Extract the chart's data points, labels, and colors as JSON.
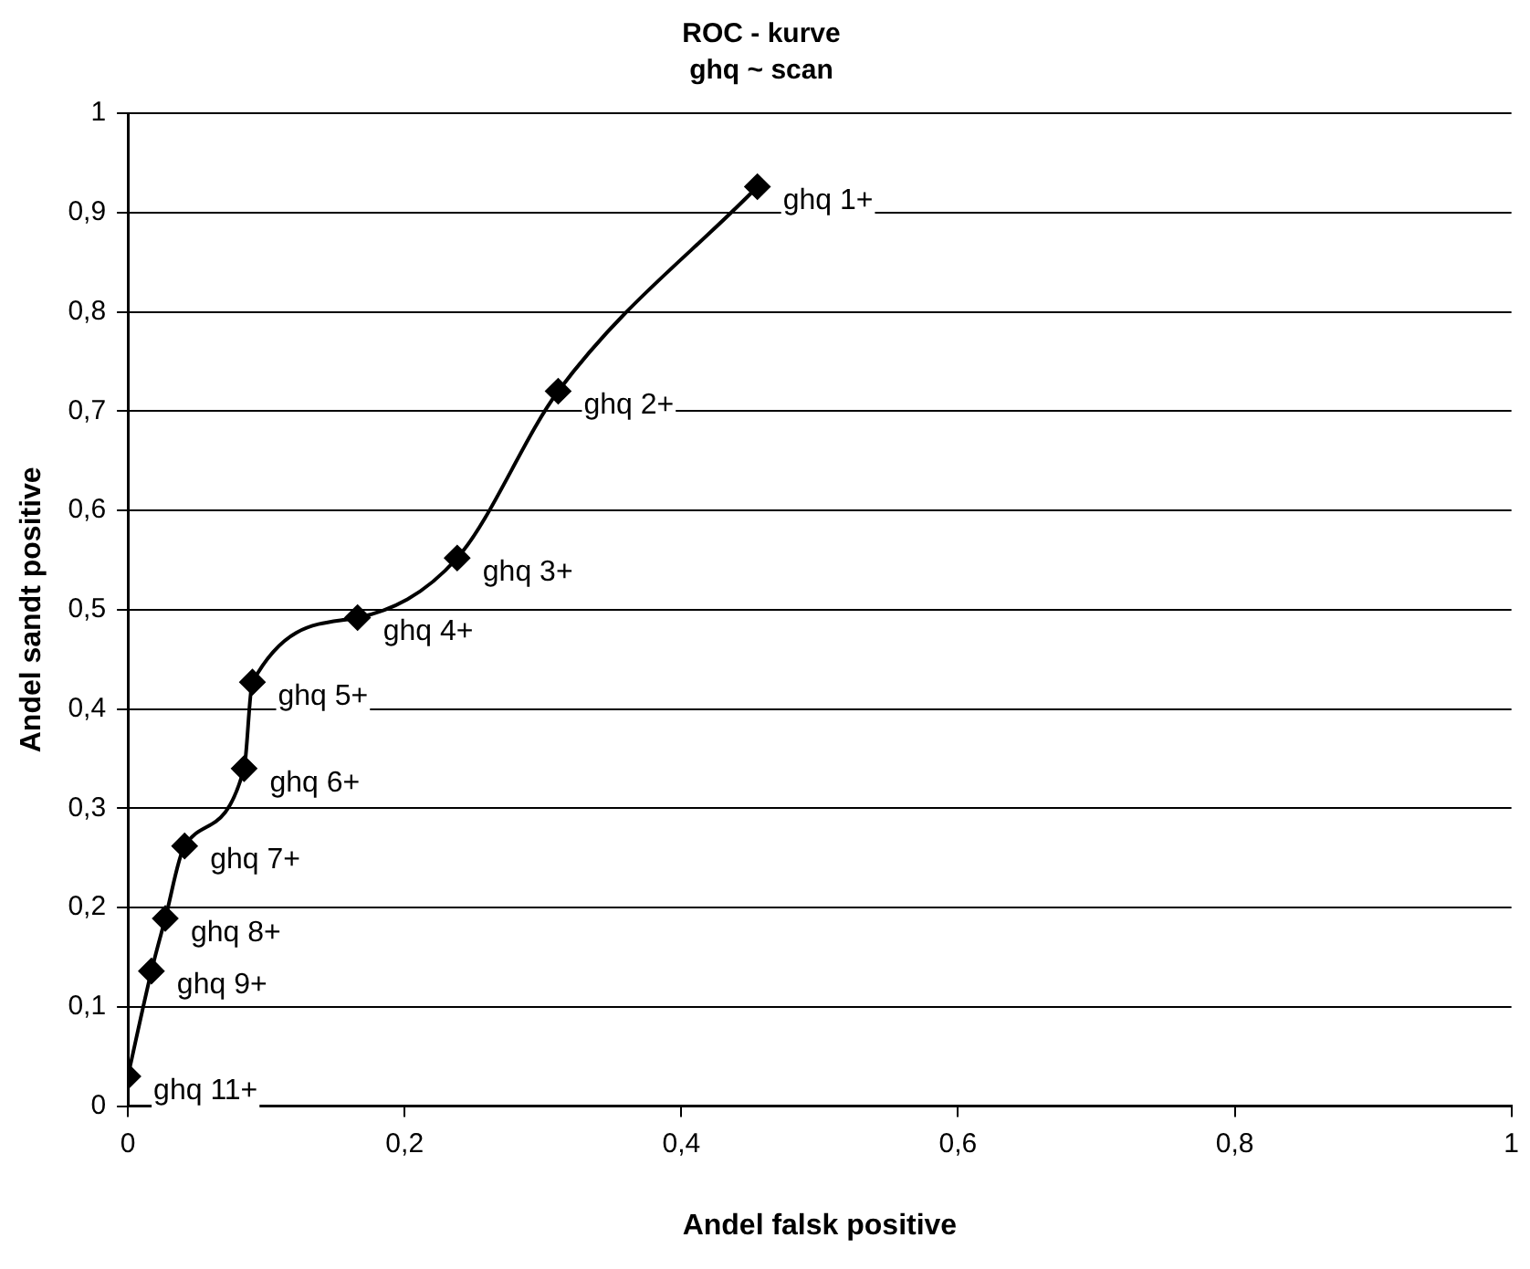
{
  "chart_data": {
    "type": "line",
    "title": "ROC - kurve",
    "subtitle": "ghq ~ scan",
    "xlabel": "Andel falsk positive",
    "ylabel": "Andel sandt positive",
    "x": [
      0,
      0.017,
      0.027,
      0.041,
      0.084,
      0.09,
      0.166,
      0.238,
      0.311,
      0.455
    ],
    "values": [
      0.03,
      0.136,
      0.189,
      0.262,
      0.34,
      0.427,
      0.492,
      0.552,
      0.72,
      0.926
    ],
    "color": "#000000",
    "marker": "diamond",
    "grid": "y",
    "legend": false,
    "xlim": [
      0,
      1
    ],
    "xticks": [
      0,
      {
        "value": 0.2,
        "label": "0,2"
      },
      {
        "value": 0.4,
        "label": "0,4"
      },
      {
        "value": 0.6,
        "label": "0,6"
      },
      {
        "value": 0.8,
        "label": "0,8"
      },
      1
    ],
    "ylim": [
      0,
      1
    ],
    "yticks": [
      0,
      {
        "value": 0.1,
        "label": "0,1"
      },
      {
        "value": 0.2,
        "label": "0,2"
      },
      {
        "value": 0.3,
        "label": "0,3"
      },
      {
        "value": 0.4,
        "label": "0,4"
      },
      {
        "value": 0.5,
        "label": "0,5"
      },
      {
        "value": 0.6,
        "label": "0,6"
      },
      {
        "value": 0.7,
        "label": "0,7"
      },
      {
        "value": 0.8,
        "label": "0,8"
      },
      {
        "value": 0.9,
        "label": "0,9"
      },
      1
    ],
    "annotations": [
      {
        "text": "ghq 11+",
        "x": 0,
        "y": 0.03
      },
      {
        "text": "ghq 9+",
        "x": 0.017,
        "y": 0.136
      },
      {
        "text": "ghq 8+",
        "x": 0.027,
        "y": 0.189
      },
      {
        "text": "ghq 7+",
        "x": 0.041,
        "y": 0.262
      },
      {
        "text": "ghq 6+",
        "x": 0.084,
        "y": 0.34
      },
      {
        "text": "ghq 5+",
        "x": 0.09,
        "y": 0.427
      },
      {
        "text": "ghq 4+",
        "x": 0.166,
        "y": 0.492
      },
      {
        "text": "ghq 3+",
        "x": 0.238,
        "y": 0.552
      },
      {
        "text": "ghq 2+",
        "x": 0.311,
        "y": 0.72
      },
      {
        "text": "ghq 1+",
        "x": 0.455,
        "y": 0.926
      }
    ]
  }
}
